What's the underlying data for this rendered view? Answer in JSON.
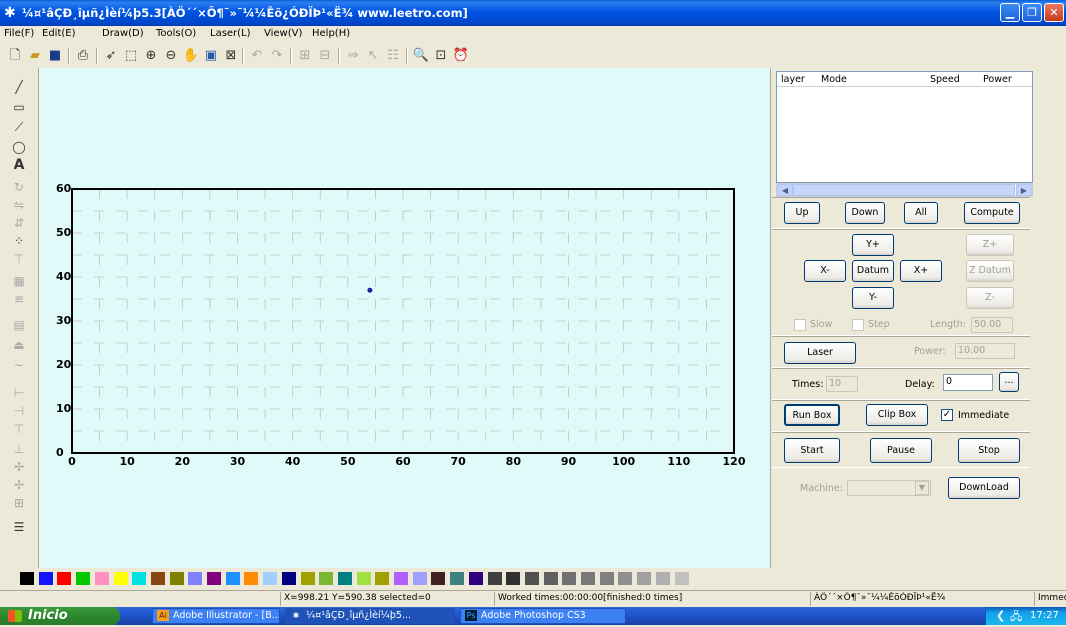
{
  "window": {
    "title": "¼¤¹âÇÐ¸îµñ¿Ìèí¼þ5.3[ÀÖ´´×Ô¶¯»¯¼¼Êõ¿ÓÐÏÞ¹«Ë¾ www.leetro.com]",
    "icon": "snowflake-icon"
  },
  "menu": [
    "File(F)",
    "Edit(E)",
    "Draw(D)",
    "Tools(O)",
    "Laser(L)",
    "View(V)",
    "Help(H)"
  ],
  "canvas_axis": {
    "x_ticks": [
      "0",
      "10",
      "20",
      "30",
      "40",
      "50",
      "60",
      "70",
      "80",
      "90",
      "100",
      "110",
      "120"
    ],
    "y_ticks": [
      "60",
      "50",
      "40",
      "30",
      "20",
      "10",
      "0"
    ],
    "x_range": [
      0,
      120
    ],
    "y_range": [
      0,
      60
    ],
    "point": {
      "x": 54,
      "y": 37
    }
  },
  "layers": {
    "headers": [
      "layer",
      "Mode",
      "Speed",
      "Power"
    ]
  },
  "controls": {
    "up": "Up",
    "down": "Down",
    "all": "All",
    "compute": "Compute",
    "y_plus": "Y+",
    "y_minus": "Y-",
    "x_minus": "X-",
    "x_plus": "X+",
    "datum": "Datum",
    "z_plus": "Z+",
    "z_datum": "Z Datum",
    "z_minus": "Z-",
    "slow": "Slow",
    "step": "Step",
    "length_label": "Length:",
    "length_value": "50.00",
    "laser": "Laser",
    "power_label": "Power:",
    "power_value": "10.00",
    "times_label": "Times:",
    "times_value": "10",
    "delay_label": "Delay:",
    "delay_value": "0",
    "ellipsis": "...",
    "run_box": "Run Box",
    "clip_box": "Clip Box",
    "immediate": "Immediate",
    "start": "Start",
    "pause": "Pause",
    "stop": "Stop",
    "machine_label": "Machine:",
    "download": "DownLoad"
  },
  "palette": [
    "#000000",
    "#1414ff",
    "#ff0000",
    "#00c800",
    "#ff90c0",
    "#ffff00",
    "#00e0e0",
    "#8b4513",
    "#808000",
    "#8080ff",
    "#800080",
    "#1e90ff",
    "#ff8c00",
    "#a0d0ff",
    "#000080",
    "#a0a000",
    "#7ab832",
    "#008080",
    "#a0e040",
    "#a0a000",
    "#b060ff",
    "#a0a0ff",
    "#402020",
    "#408080",
    "#300080",
    "#404040",
    "#303030",
    "#505050",
    "#606060",
    "#707070",
    "#787878",
    "#808080",
    "#909090",
    "#a0a0a0",
    "#b0b0b0",
    "#c0c0c0"
  ],
  "status": {
    "coords": "X=998.21 Y=590.38 selected=0",
    "worked": "Worked times:00:00:00[finished:0 times]",
    "company": "ÀÖ´´×Ô¶¯»¯¼¼ÊõÓÐÏÞ¹«Ë¾",
    "mode": "Immec"
  },
  "taskbar": {
    "start": "Inicio",
    "tasks": [
      "Adobe Illustrator - [B...",
      "¼¤¹âÇÐ¸îµñ¿Ìèí¼þ5...",
      "Adobe Photoshop CS3"
    ],
    "clock": "17:27"
  }
}
